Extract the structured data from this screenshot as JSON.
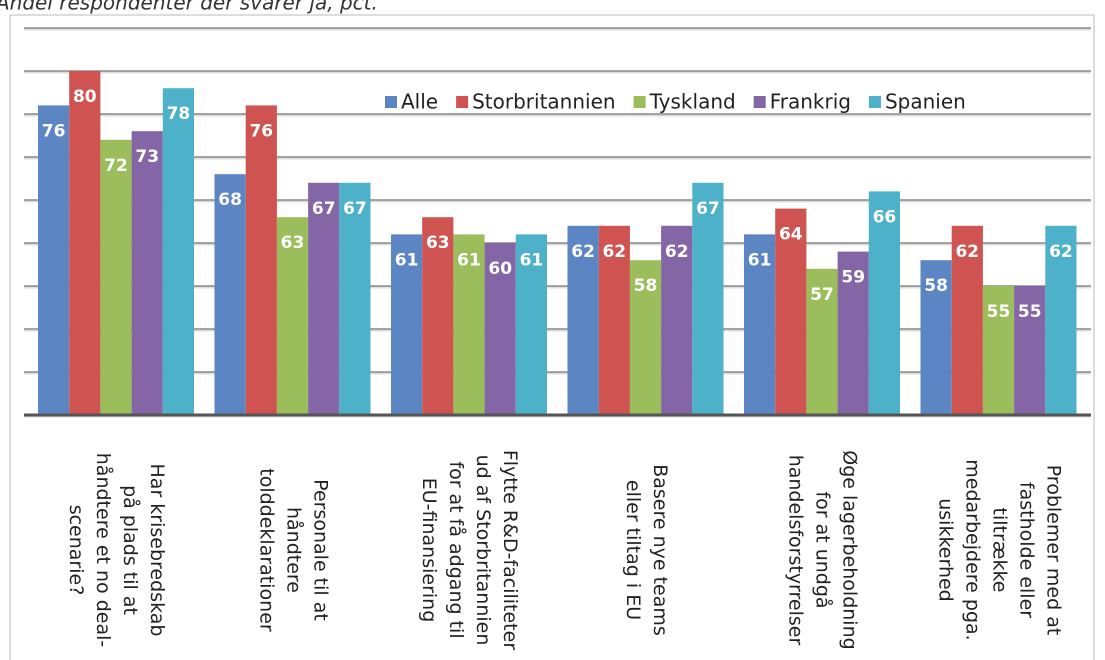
{
  "chart_data": {
    "type": "bar",
    "subtitle": "Andel respondenter der svarer ja, pct.",
    "categories": [
      "Har krisebredskab\npå plads til at\nhåndtere et no deal-\nscenarie?",
      "Personale til at\nhåndtere\ntolddeklarationer",
      "Flytte R&D-faciliteter\nud af Storbritannien\nfor at få adgang til\nEU-finansiering",
      "Basere nye teams\neller tiltag i EU",
      "Øge lagerbeholdning\nfor at undgå\nhandelsforstyrrelser",
      "Problemer med at\nfastholde eller\ntiltrække\nmedarbejdere pga.\nusikkerhed"
    ],
    "series": [
      {
        "name": "Alle",
        "color": "#5b86c3",
        "values": [
          76,
          68,
          61,
          62,
          61,
          58
        ]
      },
      {
        "name": "Storbritannien",
        "color": "#cf5350",
        "values": [
          80,
          76,
          63,
          62,
          64,
          62
        ]
      },
      {
        "name": "Tyskland",
        "color": "#9cbd5b",
        "values": [
          72,
          63,
          61,
          58,
          57,
          55
        ]
      },
      {
        "name": "Frankrig",
        "color": "#8466a6",
        "values": [
          73,
          67,
          60,
          62,
          59,
          55
        ]
      },
      {
        "name": "Spanien",
        "color": "#4db1c9",
        "values": [
          78,
          67,
          61,
          67,
          66,
          62
        ]
      }
    ],
    "ylim": [
      40,
      85
    ],
    "yticks": [
      40,
      45,
      50,
      55,
      60,
      65,
      70,
      75,
      80,
      85
    ],
    "grid": true,
    "legend": "top"
  }
}
